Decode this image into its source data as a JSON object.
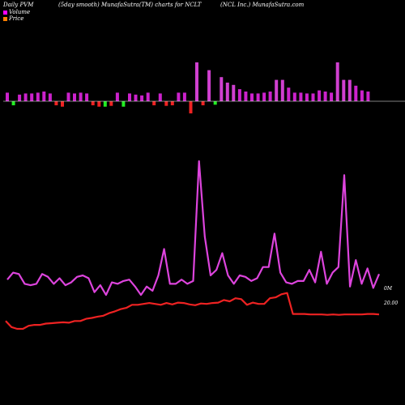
{
  "header": {
    "left": "Daily PVM",
    "middle": "(5day smooth) MunafaSutra(TM) charts for NCLT",
    "right": "(NCL Inc.) MunafaSutra.com"
  },
  "legend": [
    {
      "label": "Volume",
      "color": "#ff00ff"
    },
    {
      "label": "Price",
      "color": "#ff8000"
    }
  ],
  "colors": {
    "vol_up": "#cc22cc",
    "vol_up_tall": "#d040d0",
    "vol_down_red": "#ee2222",
    "vol_down_green": "#22ee22",
    "volume_line": "#dd44dd",
    "price_line": "#ee2222",
    "baseline": "#ffffff"
  },
  "chart_data": {
    "type": "bar+line",
    "volume_bars": {
      "unit": "relative",
      "values": [
        0.22,
        -0.15,
        0.17,
        0.2,
        0.2,
        0.22,
        0.25,
        0.2,
        -0.15,
        -0.2,
        0.22,
        0.2,
        0.22,
        0.2,
        -0.15,
        -0.2,
        -0.2,
        -0.17,
        0.22,
        -0.2,
        0.2,
        0.17,
        0.15,
        0.22,
        -0.15,
        0.2,
        -0.17,
        -0.15,
        0.22,
        0.22,
        -0.45,
        1.0,
        -0.15,
        0.8,
        -0.13,
        0.62,
        0.48,
        0.42,
        0.31,
        0.25,
        0.2,
        0.2,
        0.22,
        0.25,
        0.55,
        0.55,
        0.35,
        0.22,
        0.22,
        0.2,
        0.2,
        0.28,
        0.25,
        0.22,
        1.0,
        0.55,
        0.55,
        0.4,
        0.28,
        0.25
      ]
    },
    "volume_line": {
      "unit": "relative",
      "labels": [
        "0M"
      ],
      "values": [
        0.15,
        0.2,
        0.19,
        0.12,
        0.11,
        0.12,
        0.19,
        0.17,
        0.12,
        0.16,
        0.11,
        0.13,
        0.17,
        0.18,
        0.16,
        0.06,
        0.11,
        0.04,
        0.13,
        0.12,
        0.14,
        0.15,
        0.1,
        0.04,
        0.1,
        0.07,
        0.18,
        0.37,
        0.12,
        0.12,
        0.15,
        0.12,
        0.14,
        1.0,
        0.46,
        0.18,
        0.22,
        0.34,
        0.18,
        0.12,
        0.18,
        0.17,
        0.14,
        0.16,
        0.24,
        0.24,
        0.48,
        0.2,
        0.13,
        0.12,
        0.14,
        0.14,
        0.22,
        0.13,
        0.35,
        0.12,
        0.2,
        0.24,
        0.9,
        0.1,
        0.29,
        0.12,
        0.23,
        0.09,
        0.19
      ]
    },
    "price_line": {
      "labels": [
        "20.00"
      ],
      "values": [
        0.18,
        0.04,
        0.0,
        0.0,
        0.07,
        0.09,
        0.09,
        0.12,
        0.13,
        0.14,
        0.15,
        0.14,
        0.18,
        0.18,
        0.23,
        0.25,
        0.28,
        0.3,
        0.36,
        0.4,
        0.45,
        0.48,
        0.55,
        0.55,
        0.57,
        0.59,
        0.57,
        0.55,
        0.59,
        0.56,
        0.6,
        0.59,
        0.56,
        0.54,
        0.58,
        0.57,
        0.59,
        0.6,
        0.66,
        0.63,
        0.7,
        0.68,
        0.55,
        0.6,
        0.57,
        0.57,
        0.7,
        0.72,
        0.79,
        0.82,
        0.34,
        0.34,
        0.34,
        0.33,
        0.33,
        0.33,
        0.32,
        0.33,
        0.32,
        0.33,
        0.33,
        0.33,
        0.33,
        0.34,
        0.34,
        0.33
      ]
    }
  }
}
